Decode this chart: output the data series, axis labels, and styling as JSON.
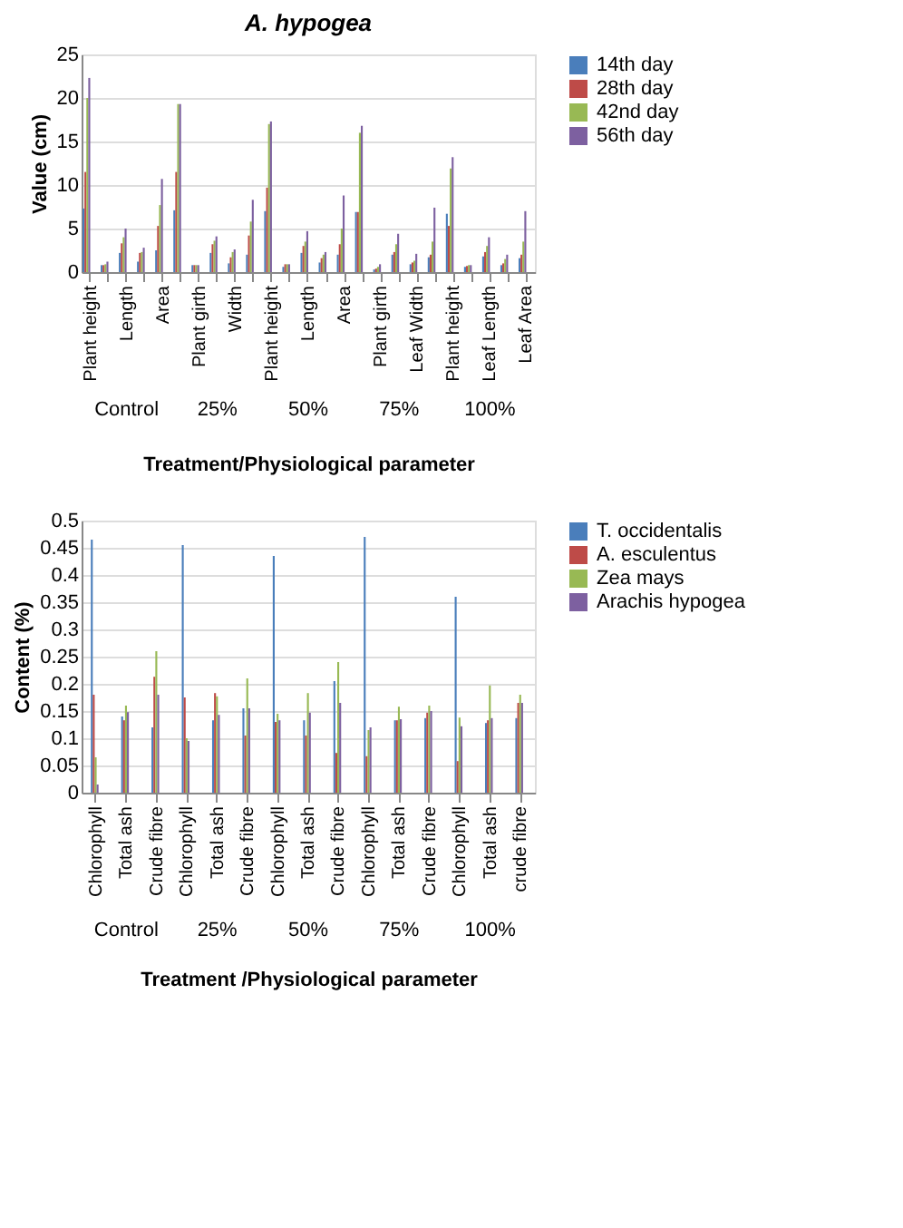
{
  "chart_data": [
    {
      "type": "bar",
      "title": "A. hypogea",
      "xlabel": "Treatment/Physiological parameter",
      "ylabel": "Value (cm)",
      "categories": [
        "Plant height",
        null,
        "Length",
        null,
        "Area",
        null,
        "Plant girth",
        null,
        "Width",
        null,
        "Plant height",
        null,
        "Length",
        null,
        "Area",
        null,
        "Plant girth",
        null,
        "Leaf Width",
        null,
        "Plant height",
        null,
        "Leaf Length",
        null,
        "Leaf Area"
      ],
      "annotations": [
        "Control",
        "25%",
        "50%",
        "75%",
        "100%"
      ],
      "series": [
        {
          "name": "14th day",
          "color": "#4a7ebb",
          "values": [
            7.3,
            0.8,
            2.2,
            1.2,
            2.5,
            7.1,
            0.8,
            2.2,
            1.0,
            2.0,
            7.0,
            0.6,
            2.2,
            1.1,
            2.0,
            6.9,
            0.3,
            2.0,
            0.9,
            1.7,
            6.7,
            0.6,
            1.8,
            0.8,
            1.6
          ]
        },
        {
          "name": "28th day",
          "color": "#be4b48",
          "values": [
            11.5,
            0.8,
            3.3,
            2.2,
            5.3,
            11.5,
            0.8,
            3.2,
            1.7,
            4.2,
            9.7,
            0.9,
            3.0,
            1.6,
            3.2,
            6.9,
            0.4,
            2.3,
            1.1,
            2.0,
            5.3,
            0.7,
            2.3,
            1.0,
            2.0
          ]
        },
        {
          "name": "42nd day",
          "color": "#98b954",
          "values": [
            20.0,
            0.9,
            4.0,
            2.3,
            7.7,
            19.3,
            0.8,
            3.6,
            2.3,
            5.8,
            17.0,
            0.9,
            3.5,
            2.0,
            5.0,
            16.0,
            0.6,
            3.2,
            1.3,
            3.5,
            11.9,
            0.8,
            3.0,
            1.5,
            3.5
          ]
        },
        {
          "name": "56th day",
          "color": "#7d60a0",
          "values": [
            22.3,
            1.2,
            5.0,
            2.8,
            10.7,
            19.3,
            0.8,
            4.1,
            2.6,
            8.3,
            17.3,
            0.9,
            4.7,
            2.3,
            8.8,
            16.8,
            0.9,
            4.4,
            2.1,
            7.4,
            13.2,
            0.8,
            4.0,
            2.0,
            7.0
          ]
        }
      ],
      "ylim": [
        0,
        25
      ],
      "yticks": [
        0,
        5,
        10,
        15,
        20,
        25
      ],
      "grid": "y",
      "legend": "right"
    },
    {
      "type": "bar",
      "xlabel": "Treatment /Physiological parameter",
      "ylabel": "Content (%)",
      "categories": [
        "Chlorophyll",
        "Total ash",
        "Crude fibre",
        "Chlorophyll",
        "Total ash",
        "Crude fibre",
        "Chlorophyll",
        "Total ash",
        "Crude fibre",
        "Chlorophyll",
        "Total ash",
        "Crude fibre",
        "Chlorophyll",
        "Total ash",
        "crude fibre"
      ],
      "annotations": [
        "Control",
        "25%",
        "50%",
        "75%",
        "100%"
      ],
      "series": [
        {
          "name": "T. occidentalis",
          "color": "#4a7ebb",
          "values": [
            0.465,
            0.14,
            0.12,
            0.455,
            0.133,
            0.155,
            0.435,
            0.133,
            0.205,
            0.47,
            0.133,
            0.137,
            0.36,
            0.128,
            0.137
          ]
        },
        {
          "name": "A. esculentus",
          "color": "#be4b48",
          "values": [
            0.18,
            0.133,
            0.213,
            0.175,
            0.183,
            0.105,
            0.13,
            0.105,
            0.073,
            0.067,
            0.133,
            0.147,
            0.058,
            0.133,
            0.165
          ]
        },
        {
          "name": "Zea mays",
          "color": "#98b954",
          "values": [
            0.065,
            0.16,
            0.26,
            0.1,
            0.177,
            0.21,
            0.145,
            0.183,
            0.24,
            0.115,
            0.158,
            0.16,
            0.138,
            0.197,
            0.18
          ]
        },
        {
          "name": "Arachis hypogea",
          "color": "#7d60a0",
          "values": [
            0.015,
            0.148,
            0.18,
            0.095,
            0.143,
            0.155,
            0.133,
            0.147,
            0.165,
            0.12,
            0.135,
            0.15,
            0.122,
            0.137,
            0.165
          ]
        }
      ],
      "ylim": [
        0,
        0.5
      ],
      "yticks": [
        0,
        0.05,
        0.1,
        0.15,
        0.2,
        0.25,
        0.3,
        0.35,
        0.4,
        0.45,
        0.5
      ],
      "grid": "y",
      "legend": "right"
    }
  ]
}
